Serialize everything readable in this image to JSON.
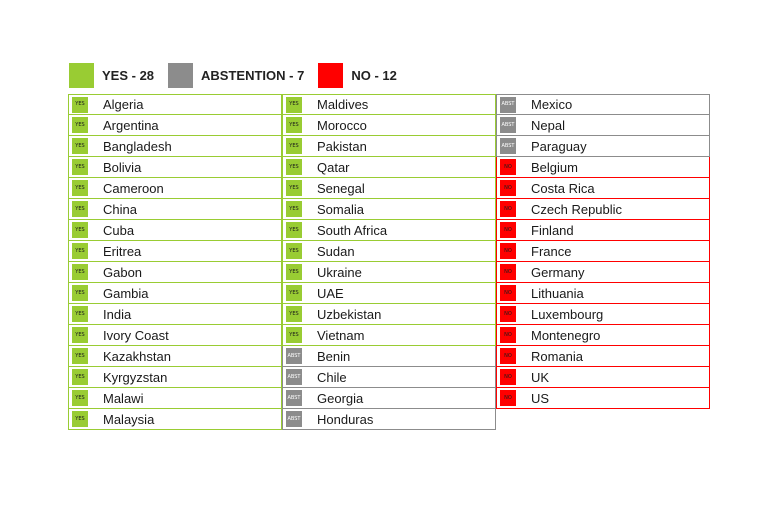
{
  "colors": {
    "yes": "#99cc33",
    "abst": "#8c8c8c",
    "no": "#ff0000"
  },
  "legend": [
    {
      "key": "yes",
      "label": "YES - 28"
    },
    {
      "key": "abst",
      "label": "ABSTENTION - 7"
    },
    {
      "key": "no",
      "label": "NO - 12"
    }
  ],
  "badges": {
    "yes": "YES",
    "abst": "ABST",
    "no": "NO"
  },
  "columns": [
    [
      {
        "vote": "yes",
        "country": "Algeria"
      },
      {
        "vote": "yes",
        "country": "Argentina"
      },
      {
        "vote": "yes",
        "country": "Bangladesh"
      },
      {
        "vote": "yes",
        "country": "Bolivia"
      },
      {
        "vote": "yes",
        "country": "Cameroon"
      },
      {
        "vote": "yes",
        "country": "China"
      },
      {
        "vote": "yes",
        "country": "Cuba"
      },
      {
        "vote": "yes",
        "country": "Eritrea"
      },
      {
        "vote": "yes",
        "country": "Gabon"
      },
      {
        "vote": "yes",
        "country": "Gambia"
      },
      {
        "vote": "yes",
        "country": "India"
      },
      {
        "vote": "yes",
        "country": "Ivory Coast"
      },
      {
        "vote": "yes",
        "country": "Kazakhstan"
      },
      {
        "vote": "yes",
        "country": "Kyrgyzstan"
      },
      {
        "vote": "yes",
        "country": "Malawi"
      },
      {
        "vote": "yes",
        "country": "Malaysia"
      }
    ],
    [
      {
        "vote": "yes",
        "country": "Maldives"
      },
      {
        "vote": "yes",
        "country": "Morocco"
      },
      {
        "vote": "yes",
        "country": "Pakistan"
      },
      {
        "vote": "yes",
        "country": "Qatar"
      },
      {
        "vote": "yes",
        "country": "Senegal"
      },
      {
        "vote": "yes",
        "country": "Somalia"
      },
      {
        "vote": "yes",
        "country": "South Africa"
      },
      {
        "vote": "yes",
        "country": "Sudan"
      },
      {
        "vote": "yes",
        "country": "Ukraine"
      },
      {
        "vote": "yes",
        "country": "UAE"
      },
      {
        "vote": "yes",
        "country": "Uzbekistan"
      },
      {
        "vote": "yes",
        "country": "Vietnam"
      },
      {
        "vote": "abst",
        "country": "Benin"
      },
      {
        "vote": "abst",
        "country": "Chile"
      },
      {
        "vote": "abst",
        "country": "Georgia"
      },
      {
        "vote": "abst",
        "country": "Honduras"
      }
    ],
    [
      {
        "vote": "abst",
        "country": "Mexico"
      },
      {
        "vote": "abst",
        "country": "Nepal"
      },
      {
        "vote": "abst",
        "country": "Paraguay"
      },
      {
        "vote": "no",
        "country": "Belgium"
      },
      {
        "vote": "no",
        "country": "Costa Rica"
      },
      {
        "vote": "no",
        "country": "Czech Republic"
      },
      {
        "vote": "no",
        "country": "Finland"
      },
      {
        "vote": "no",
        "country": "France"
      },
      {
        "vote": "no",
        "country": "Germany"
      },
      {
        "vote": "no",
        "country": "Lithuania"
      },
      {
        "vote": "no",
        "country": "Luxembourg"
      },
      {
        "vote": "no",
        "country": "Montenegro"
      },
      {
        "vote": "no",
        "country": "Romania"
      },
      {
        "vote": "no",
        "country": "UK"
      },
      {
        "vote": "no",
        "country": "US"
      }
    ]
  ]
}
